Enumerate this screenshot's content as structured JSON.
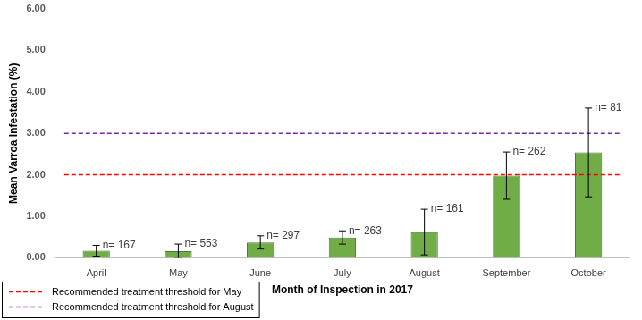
{
  "chart_data": {
    "type": "bar",
    "categories": [
      "April",
      "May",
      "June",
      "July",
      "August",
      "September",
      "October"
    ],
    "values": [
      0.17,
      0.16,
      0.37,
      0.49,
      0.62,
      1.98,
      2.54
    ],
    "errors": [
      0.13,
      0.17,
      0.16,
      0.16,
      0.55,
      0.57,
      1.07
    ],
    "annotations": [
      "n= 167",
      "n= 553",
      "n= 297",
      "n= 263",
      "n= 161",
      "n= 262",
      "n= 81"
    ],
    "color": "#70ad47",
    "x_label": "Month of Inspection in 2017",
    "y_label": "Mean Varroa Infestation (%)",
    "ylim": [
      0,
      6
    ],
    "yticks": [
      {
        "value": 0,
        "label": "0.00"
      },
      {
        "value": 1,
        "label": "1.00"
      },
      {
        "value": 2,
        "label": "2.00"
      },
      {
        "value": 3,
        "label": "3.00"
      },
      {
        "value": 4,
        "label": "4.00"
      },
      {
        "value": 5,
        "label": "5.00"
      },
      {
        "value": 6,
        "label": "6.00"
      }
    ],
    "grid": false,
    "reference_lines": [
      {
        "name": "Recommended treatment threshold for May",
        "value": 2,
        "color": "#ff0000",
        "line_style": "dashed"
      },
      {
        "name": "Recommended treatment threshold for August",
        "value": 3,
        "color": "#7030a0",
        "line_style": "dashed"
      }
    ],
    "legend": "bottom-left"
  }
}
